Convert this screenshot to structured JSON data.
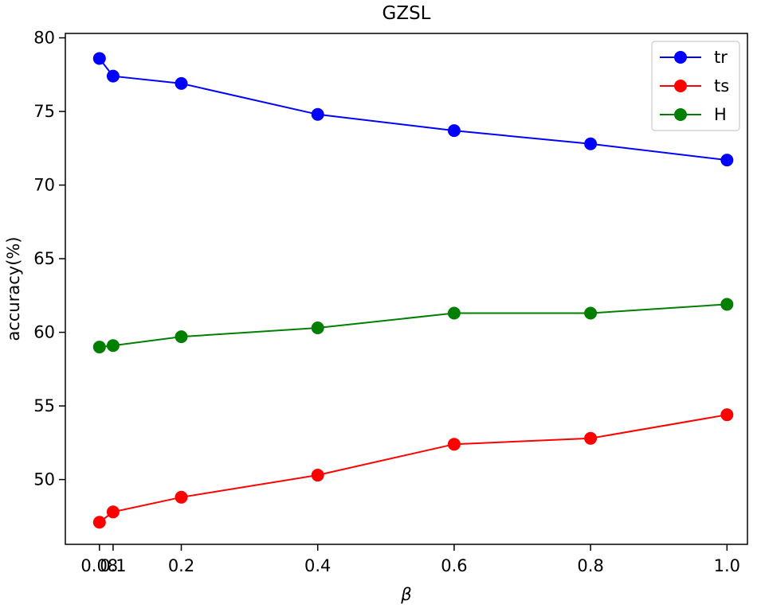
{
  "chart_data": {
    "type": "line",
    "title": "GZSL",
    "xlabel": "β",
    "ylabel": "accuracy(%)",
    "x": [
      0.08,
      0.1,
      0.2,
      0.4,
      0.6,
      0.8,
      1.0
    ],
    "x_tick_labels": [
      "0.08",
      "0.1",
      "0.2",
      "0.4",
      "0.6",
      "0.8",
      "1.0"
    ],
    "xlim": [
      0.03,
      1.03
    ],
    "ylim": [
      45.6,
      80.3
    ],
    "y_ticks": [
      50,
      55,
      60,
      65,
      70,
      75,
      80
    ],
    "grid": false,
    "legend_position": "top-right",
    "series": [
      {
        "name": "tr",
        "color": "#0000ff",
        "values": [
          78.6,
          77.4,
          76.9,
          74.8,
          73.7,
          72.8,
          71.7
        ]
      },
      {
        "name": "ts",
        "color": "#ff0000",
        "values": [
          47.1,
          47.8,
          48.8,
          50.3,
          52.4,
          52.8,
          54.4
        ]
      },
      {
        "name": "H",
        "color": "#007f00",
        "values": [
          59.0,
          59.1,
          59.7,
          60.3,
          61.3,
          61.3,
          61.9
        ]
      }
    ]
  }
}
